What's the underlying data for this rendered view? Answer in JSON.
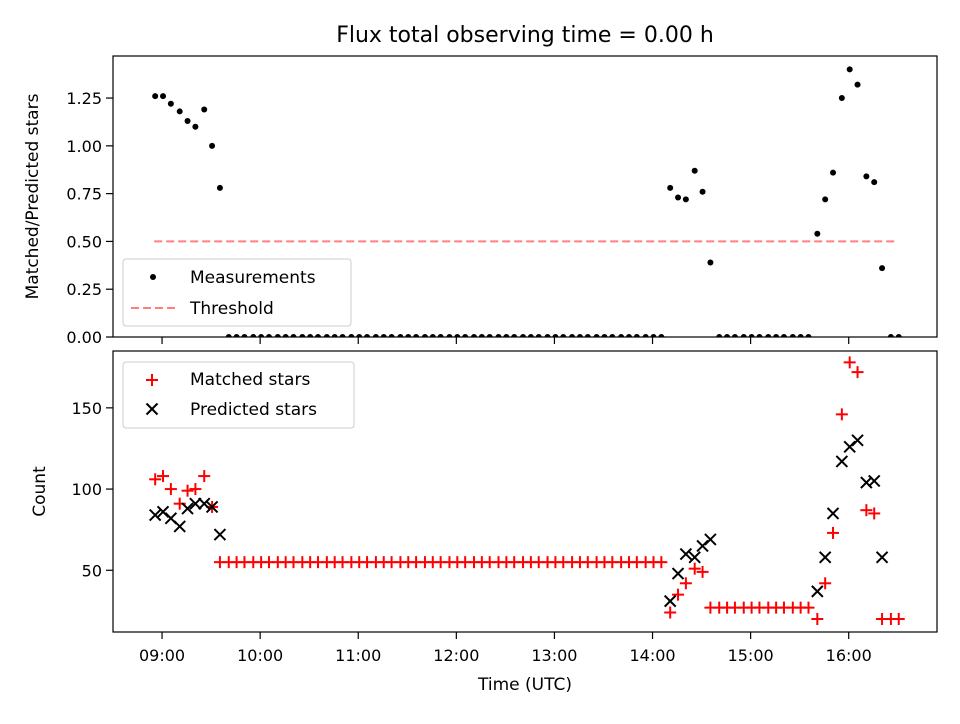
{
  "title": "Flux total observing time = 0.00 h",
  "chart_data": [
    {
      "type": "scatter",
      "ylabel": "Matched/Predicted stars",
      "xlim": [
        8.5,
        16.9
      ],
      "ylim": [
        0,
        1.47
      ],
      "yticks": [
        0,
        0.25,
        0.5,
        0.75,
        1.0,
        1.25
      ],
      "ytick_labels": [
        "0.00",
        "0.25",
        "0.50",
        "0.75",
        "1.00",
        "1.25"
      ],
      "xticks": [
        9,
        10,
        11,
        12,
        13,
        14,
        15,
        16
      ],
      "threshold": {
        "name": "Threshold",
        "value": 0.5,
        "x_range": [
          8.92,
          16.5
        ],
        "color": "#ff7f7f"
      },
      "legend": {
        "position": "lower-left",
        "measurements_label": "Measurements",
        "threshold_label": "Threshold"
      },
      "series": [
        {
          "name": "Measurements",
          "color": "#000000",
          "x": [
            8.93,
            9.01,
            9.09,
            9.18,
            9.26,
            9.34,
            9.43,
            9.51,
            9.59,
            9.68,
            9.76,
            9.84,
            9.93,
            10.01,
            10.09,
            10.18,
            10.26,
            10.34,
            10.43,
            10.51,
            10.59,
            10.68,
            10.76,
            10.84,
            10.93,
            11.01,
            11.09,
            11.18,
            11.26,
            11.34,
            11.43,
            11.51,
            11.59,
            11.68,
            11.76,
            11.84,
            11.93,
            12.01,
            12.09,
            12.18,
            12.26,
            12.34,
            12.43,
            12.51,
            12.59,
            12.68,
            12.76,
            12.84,
            12.93,
            13.01,
            13.09,
            13.18,
            13.26,
            13.34,
            13.43,
            13.51,
            13.59,
            13.68,
            13.76,
            13.84,
            13.93,
            14.01,
            14.09,
            14.18,
            14.26,
            14.34,
            14.43,
            14.51,
            14.59,
            14.68,
            14.76,
            14.84,
            14.93,
            15.01,
            15.09,
            15.18,
            15.26,
            15.34,
            15.43,
            15.51,
            15.59,
            15.68,
            15.76,
            15.84,
            15.93,
            16.01,
            16.09,
            16.18,
            16.26,
            16.34,
            16.43,
            16.51
          ],
          "y": [
            1.26,
            1.26,
            1.22,
            1.18,
            1.13,
            1.1,
            1.19,
            1.0,
            0.78,
            0,
            0,
            0,
            0,
            0,
            0,
            0,
            0,
            0,
            0,
            0,
            0,
            0,
            0,
            0,
            0,
            0,
            0,
            0,
            0,
            0,
            0,
            0,
            0,
            0,
            0,
            0,
            0,
            0,
            0,
            0,
            0,
            0,
            0,
            0,
            0,
            0,
            0,
            0,
            0,
            0,
            0,
            0,
            0,
            0,
            0,
            0,
            0,
            0,
            0,
            0,
            0,
            0,
            0,
            0.78,
            0.73,
            0.72,
            0.87,
            0.76,
            0.39,
            0,
            0,
            0,
            0,
            0,
            0,
            0,
            0,
            0,
            0,
            0,
            0,
            0.54,
            0.72,
            0.86,
            1.25,
            1.4,
            1.32,
            0.84,
            0.81,
            0.36,
            0,
            0
          ]
        }
      ]
    },
    {
      "type": "scatter",
      "xlabel": "Time (UTC)",
      "ylabel": "Count",
      "xlim": [
        8.5,
        16.9
      ],
      "ylim": [
        12,
        185
      ],
      "yticks": [
        50,
        100,
        150
      ],
      "xticks": [
        9,
        10,
        11,
        12,
        13,
        14,
        15,
        16
      ],
      "xtick_labels": [
        "09:00",
        "10:00",
        "11:00",
        "12:00",
        "13:00",
        "14:00",
        "15:00",
        "16:00"
      ],
      "legend": {
        "position": "upper-left",
        "matched_label": "Matched stars",
        "predicted_label": "Predicted stars"
      },
      "series": [
        {
          "name": "Matched stars",
          "marker": "plus",
          "color": "#ff0000",
          "x": [
            8.93,
            9.01,
            9.09,
            9.18,
            9.26,
            9.34,
            9.43,
            9.51,
            9.59,
            9.68,
            9.76,
            9.84,
            9.93,
            10.01,
            10.09,
            10.18,
            10.26,
            10.34,
            10.43,
            10.51,
            10.59,
            10.68,
            10.76,
            10.84,
            10.93,
            11.01,
            11.09,
            11.18,
            11.26,
            11.34,
            11.43,
            11.51,
            11.59,
            11.68,
            11.76,
            11.84,
            11.93,
            12.01,
            12.09,
            12.18,
            12.26,
            12.34,
            12.43,
            12.51,
            12.59,
            12.68,
            12.76,
            12.84,
            12.93,
            13.01,
            13.09,
            13.18,
            13.26,
            13.34,
            13.43,
            13.51,
            13.59,
            13.68,
            13.76,
            13.84,
            13.93,
            14.01,
            14.09,
            14.18,
            14.26,
            14.34,
            14.43,
            14.51,
            14.59,
            14.68,
            14.76,
            14.84,
            14.93,
            15.01,
            15.09,
            15.18,
            15.26,
            15.34,
            15.43,
            15.51,
            15.59,
            15.68,
            15.76,
            15.84,
            15.93,
            16.01,
            16.09,
            16.18,
            16.26,
            16.34,
            16.43,
            16.51
          ],
          "y": [
            106,
            108,
            100,
            91,
            99,
            100,
            108,
            89,
            55,
            55,
            55,
            55,
            55,
            55,
            55,
            55,
            55,
            55,
            55,
            55,
            55,
            55,
            55,
            55,
            55,
            55,
            55,
            55,
            55,
            55,
            55,
            55,
            55,
            55,
            55,
            55,
            55,
            55,
            55,
            55,
            55,
            55,
            55,
            55,
            55,
            55,
            55,
            55,
            55,
            55,
            55,
            55,
            55,
            55,
            55,
            55,
            55,
            55,
            55,
            55,
            55,
            55,
            55,
            24,
            35,
            42,
            51,
            49,
            27,
            27,
            27,
            27,
            27,
            27,
            27,
            27,
            27,
            27,
            27,
            27,
            27,
            20,
            42,
            73,
            146,
            178,
            172,
            87,
            85,
            20,
            20,
            20
          ]
        },
        {
          "name": "Predicted stars",
          "marker": "x",
          "color": "#000000",
          "x": [
            8.93,
            9.01,
            9.09,
            9.18,
            9.26,
            9.34,
            9.43,
            9.51,
            9.59,
            14.18,
            14.26,
            14.34,
            14.43,
            14.51,
            14.59,
            15.68,
            15.76,
            15.84,
            15.93,
            16.01,
            16.09,
            16.18,
            16.26,
            16.34
          ],
          "y": [
            84,
            86,
            82,
            77,
            88,
            91,
            91,
            89,
            72,
            31,
            48,
            60,
            58,
            65,
            69,
            37,
            58,
            85,
            117,
            126,
            130,
            104,
            105,
            58
          ]
        }
      ]
    }
  ]
}
